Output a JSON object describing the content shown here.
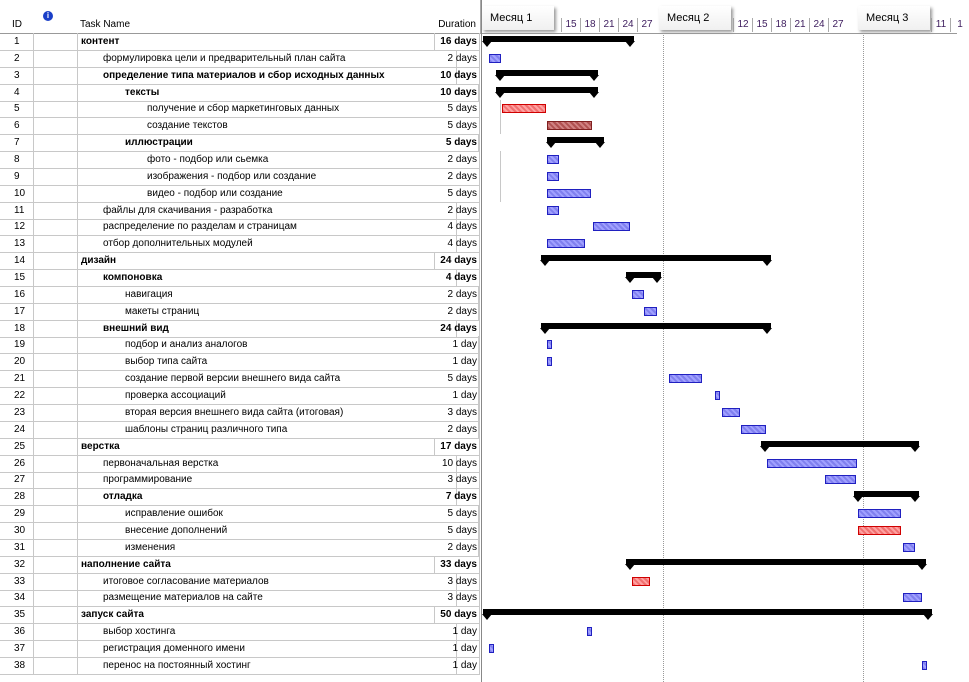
{
  "columns": {
    "id": "ID",
    "info": "i",
    "name": "Task Name",
    "duration": "Duration"
  },
  "timescale": {
    "months": [
      "Месяц 1",
      "Месяц 2",
      "Месяц 3"
    ],
    "month1_days": [
      "15",
      "18",
      "21",
      "24",
      "27"
    ],
    "month2_days": [
      "12",
      "15",
      "18",
      "21",
      "24",
      "27"
    ],
    "month3_days": [
      "11",
      "1"
    ]
  },
  "colors": {
    "task": "#8080ee",
    "critical": "#f07070",
    "summary": "#000000"
  },
  "tasks": [
    {
      "id": "1",
      "name": "контент",
      "duration": "16 days",
      "level": 0,
      "summary": true
    },
    {
      "id": "2",
      "name": "формулировка цели и предварительный план сайта",
      "duration": "2 days",
      "level": 1
    },
    {
      "id": "3",
      "name": "определение типа материалов и сбор исходных данных",
      "duration": "10 days",
      "level": 1,
      "summary": true
    },
    {
      "id": "4",
      "name": "тексты",
      "duration": "10 days",
      "level": 2,
      "summary": true
    },
    {
      "id": "5",
      "name": "получение и сбор маркетинговых данных",
      "duration": "5 days",
      "level": 3,
      "critical": true
    },
    {
      "id": "6",
      "name": "создание текстов",
      "duration": "5 days",
      "level": 3,
      "critical": true
    },
    {
      "id": "7",
      "name": "иллюстрации",
      "duration": "5 days",
      "level": 2,
      "summary": true
    },
    {
      "id": "8",
      "name": "фото - подбор или сьемка",
      "duration": "2 days",
      "level": 3
    },
    {
      "id": "9",
      "name": "изображения - подбор или создание",
      "duration": "2 days",
      "level": 3
    },
    {
      "id": "10",
      "name": "видео - подбор или создание",
      "duration": "5 days",
      "level": 3
    },
    {
      "id": "11",
      "name": "файлы для скачивания - разработка",
      "duration": "2 days",
      "level": 1
    },
    {
      "id": "12",
      "name": "распределение по разделам и страницам",
      "duration": "4 days",
      "level": 1
    },
    {
      "id": "13",
      "name": "отбор дополнительных модулей",
      "duration": "4 days",
      "level": 1
    },
    {
      "id": "14",
      "name": "дизайн",
      "duration": "24 days",
      "level": 0,
      "summary": true
    },
    {
      "id": "15",
      "name": "компоновка",
      "duration": "4 days",
      "level": 1,
      "summary": true
    },
    {
      "id": "16",
      "name": "навигация",
      "duration": "2 days",
      "level": 2
    },
    {
      "id": "17",
      "name": "макеты страниц",
      "duration": "2 days",
      "level": 2
    },
    {
      "id": "18",
      "name": "внешний вид",
      "duration": "24 days",
      "level": 1,
      "summary": true
    },
    {
      "id": "19",
      "name": "подбор и анализ аналогов",
      "duration": "1 day",
      "level": 2
    },
    {
      "id": "20",
      "name": "выбор типа сайта",
      "duration": "1 day",
      "level": 2
    },
    {
      "id": "21",
      "name": "создание первой версии внешнего вида сайта",
      "duration": "5 days",
      "level": 2
    },
    {
      "id": "22",
      "name": "проверка ассоциаций",
      "duration": "1 day",
      "level": 2
    },
    {
      "id": "23",
      "name": "вторая версия внешнего вида сайта (итоговая)",
      "duration": "3 days",
      "level": 2
    },
    {
      "id": "24",
      "name": "шаблоны страниц различного типа",
      "duration": "2 days",
      "level": 2
    },
    {
      "id": "25",
      "name": "верстка",
      "duration": "17 days",
      "level": 0,
      "summary": true
    },
    {
      "id": "26",
      "name": "первоначальная верстка",
      "duration": "10 days",
      "level": 1
    },
    {
      "id": "27",
      "name": "программирование",
      "duration": "3 days",
      "level": 1
    },
    {
      "id": "28",
      "name": "отладка",
      "duration": "7 days",
      "level": 1,
      "summary": true
    },
    {
      "id": "29",
      "name": "исправление ошибок",
      "duration": "5 days",
      "level": 2
    },
    {
      "id": "30",
      "name": "внесение дополнений",
      "duration": "5 days",
      "level": 2,
      "critical": true
    },
    {
      "id": "31",
      "name": "изменения",
      "duration": "2 days",
      "level": 2
    },
    {
      "id": "32",
      "name": "наполнение сайта",
      "duration": "33 days",
      "level": 0,
      "summary": true
    },
    {
      "id": "33",
      "name": "итоговое согласование материалов",
      "duration": "3 days",
      "level": 1,
      "critical": true
    },
    {
      "id": "34",
      "name": "размещение материалов на сайте",
      "duration": "3 days",
      "level": 1
    },
    {
      "id": "35",
      "name": "запуск сайта",
      "duration": "50 days",
      "level": 0,
      "summary": true
    },
    {
      "id": "36",
      "name": "выбор хостинга",
      "duration": "1 day",
      "level": 1
    },
    {
      "id": "37",
      "name": "регистрация доменного имени",
      "duration": "1 day",
      "level": 1
    },
    {
      "id": "38",
      "name": "перенос на постоянный хостинг",
      "duration": "1 day",
      "level": 1
    }
  ]
}
